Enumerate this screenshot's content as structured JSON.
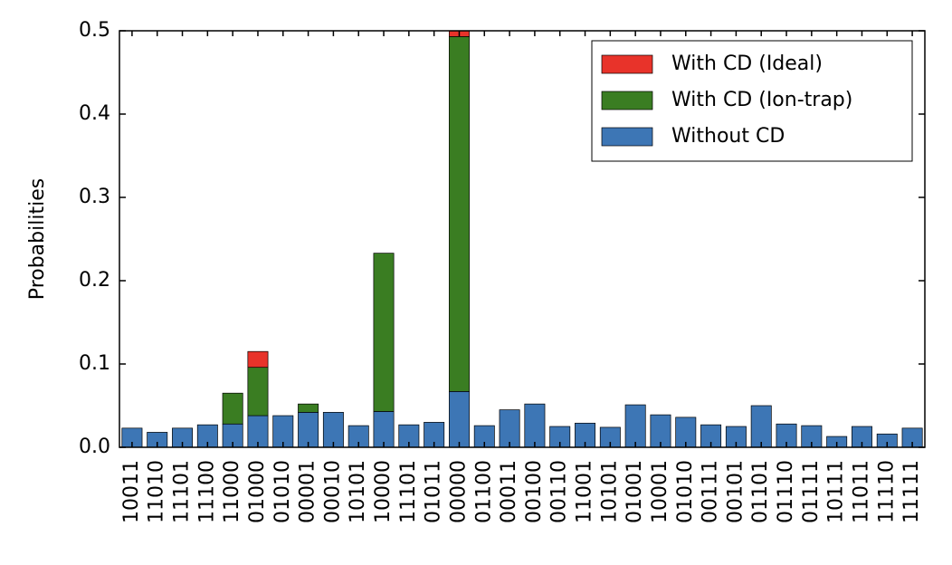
{
  "chart_data": {
    "type": "stacked_bar",
    "y_label": "Probabilities",
    "categories": [
      "10011",
      "11010",
      "11101",
      "11100",
      "11000",
      "01000",
      "01010",
      "00001",
      "00010",
      "10101",
      "10000",
      "11101",
      "01011",
      "00000",
      "01100",
      "00011",
      "00100",
      "00110",
      "11001",
      "10101",
      "01001",
      "10001",
      "01010",
      "00111",
      "00101",
      "01101",
      "01110",
      "01111",
      "10111",
      "11011",
      "11110",
      "11111"
    ],
    "series": [
      {
        "name": "With CD (Ideal)",
        "color": "#e8332a",
        "values": [
          0,
          0,
          0,
          0,
          0,
          0.019,
          0,
          0,
          0,
          0,
          0,
          0,
          0,
          0.007,
          0,
          0,
          0,
          0,
          0,
          0,
          0,
          0,
          0,
          0,
          0,
          0,
          0,
          0,
          0,
          0,
          0,
          0
        ]
      },
      {
        "name": "With CD (Ion-trap)",
        "color": "#3a7d22",
        "values": [
          0,
          0,
          0,
          0,
          0.037,
          0.058,
          0,
          0.01,
          0,
          0,
          0.19,
          0,
          0,
          0.426,
          0,
          0,
          0,
          0,
          0,
          0,
          0,
          0,
          0,
          0,
          0,
          0,
          0,
          0,
          0,
          0,
          0,
          0
        ]
      },
      {
        "name": "Without CD",
        "color": "#3d76b5",
        "values": [
          0.023,
          0.018,
          0.023,
          0.027,
          0.028,
          0.038,
          0.038,
          0.042,
          0.042,
          0.026,
          0.043,
          0.027,
          0.03,
          0.067,
          0.026,
          0.045,
          0.052,
          0.025,
          0.029,
          0.024,
          0.051,
          0.039,
          0.036,
          0.027,
          0.025,
          0.05,
          0.028,
          0.026,
          0.013,
          0.025,
          0.016,
          0.023
        ]
      }
    ],
    "ylim": [
      0,
      0.5
    ],
    "yticks": [
      {
        "value": 0,
        "label": "0.0"
      },
      0.1,
      0.2,
      0.3,
      0.4,
      0.5
    ],
    "legend": "upper right"
  }
}
